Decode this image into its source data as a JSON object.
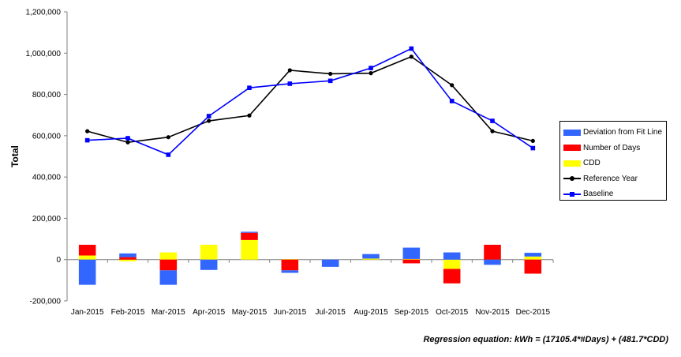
{
  "chart_data": {
    "type": "bar",
    "title": "",
    "xlabel": "",
    "ylabel": "Total",
    "ylim": [
      -200000,
      1200000
    ],
    "yticks": [
      -200000,
      0,
      200000,
      400000,
      600000,
      800000,
      1000000,
      1200000
    ],
    "ytick_labels": [
      "-200,000",
      "0",
      "200,000",
      "400,000",
      "600,000",
      "800,000",
      "1,000,000",
      "1,200,000"
    ],
    "categories": [
      "Jan-2015",
      "Feb-2015",
      "Mar-2015",
      "Apr-2015",
      "May-2015",
      "Jun-2015",
      "Jul-2015",
      "Aug-2015",
      "Sep-2015",
      "Oct-2015",
      "Nov-2015",
      "Dec-2015"
    ],
    "legend_position": "right",
    "grid": false,
    "bar_series": [
      {
        "name": "CDD",
        "color": "#FFFF00",
        "values": [
          20000,
          -8000,
          35000,
          72000,
          95000,
          2000,
          0,
          5000,
          3000,
          -45000,
          0,
          15000
        ]
      },
      {
        "name": "Number of Days",
        "color": "#FF0000",
        "values": [
          52000,
          12000,
          -52000,
          0,
          35000,
          -52000,
          0,
          0,
          -18000,
          -70000,
          72000,
          -68000
        ]
      },
      {
        "name": "Deviation from Fit Line",
        "color": "#3366FF",
        "values": [
          -122000,
          18000,
          -70000,
          -50000,
          5000,
          -12000,
          -35000,
          22000,
          55000,
          35000,
          -25000,
          18000
        ]
      }
    ],
    "line_series": [
      {
        "name": "Reference Year",
        "color": "#000000",
        "marker": "circle",
        "values": [
          622000,
          568000,
          593000,
          672000,
          698000,
          917000,
          900000,
          903000,
          983000,
          845000,
          622000,
          575000
        ]
      },
      {
        "name": "Baseline",
        "color": "#0000FF",
        "marker": "square",
        "values": [
          578000,
          588000,
          508000,
          695000,
          832000,
          852000,
          866000,
          928000,
          1022000,
          768000,
          672000,
          540000
        ]
      }
    ]
  },
  "legend": {
    "items": [
      {
        "label": "Deviation from Fit Line",
        "kind": "bar",
        "color": "#3366FF"
      },
      {
        "label": "Number of Days",
        "kind": "bar",
        "color": "#FF0000"
      },
      {
        "label": "CDD",
        "kind": "bar",
        "color": "#FFFF00"
      },
      {
        "label": "Reference Year",
        "kind": "line",
        "color": "#000000",
        "marker": "circle"
      },
      {
        "label": "Baseline",
        "kind": "line",
        "color": "#0000FF",
        "marker": "square"
      }
    ]
  },
  "equation": "Regression equation: kWh = (17105.4*#Days) + (481.7*CDD)"
}
